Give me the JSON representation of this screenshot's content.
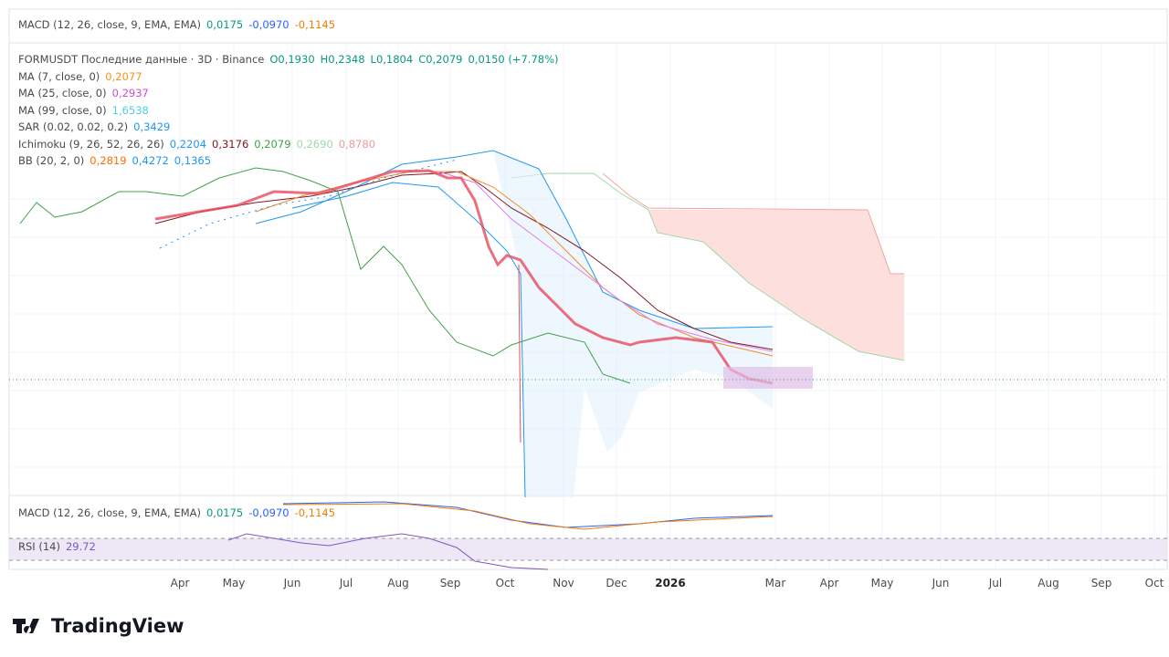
{
  "macd_top": {
    "label": "MACD (12, 26, close, 9, EMA, EMA)",
    "values": [
      {
        "text": "0,0175",
        "color": "#089981"
      },
      {
        "text": "-0,0970",
        "color": "#2962ff"
      },
      {
        "text": "-0,1145",
        "color": "#f57c00"
      }
    ]
  },
  "legend": [
    {
      "label": "FORMUSDT Последние данные · 3D · Binance",
      "values": [
        {
          "text": "O0,1930",
          "color": "#089981"
        },
        {
          "text": "H0,2348",
          "color": "#089981"
        },
        {
          "text": "L0,1804",
          "color": "#089981"
        },
        {
          "text": "C0,2079",
          "color": "#089981"
        },
        {
          "text": "0,0150 (+7.78%)",
          "color": "#089981"
        }
      ]
    },
    {
      "label": "MA (7, close, 0)",
      "values": [
        {
          "text": "0,2077",
          "color": "#f7931a"
        }
      ]
    },
    {
      "label": "MA (25, close, 0)",
      "values": [
        {
          "text": "0,2937",
          "color": "#d24bd8"
        }
      ]
    },
    {
      "label": "MA (99, close, 0)",
      "values": [
        {
          "text": "1,6538",
          "color": "#4dd0e1"
        }
      ]
    },
    {
      "label": "SAR (0.02, 0.02, 0.2)",
      "values": [
        {
          "text": "0,3429",
          "color": "#2196f3"
        }
      ]
    },
    {
      "label": "Ichimoku (9, 26, 52, 26, 26)",
      "values": [
        {
          "text": "0,2204",
          "color": "#2196f3"
        },
        {
          "text": "0,3176",
          "color": "#801922"
        },
        {
          "text": "0,2079",
          "color": "#43a047"
        },
        {
          "text": "0,2690",
          "color": "#a5d6a7"
        },
        {
          "text": "0,8780",
          "color": "#ef9a9a"
        }
      ]
    },
    {
      "label": "BB (20, 2, 0)",
      "values": [
        {
          "text": "0,2819",
          "color": "#ff6d00"
        },
        {
          "text": "0,4272",
          "color": "#2196f3"
        },
        {
          "text": "0,1365",
          "color": "#2196f3"
        }
      ]
    }
  ],
  "macd_pane": {
    "label": "MACD (12, 26, close, 9, EMA, EMA)",
    "values": [
      {
        "text": "0,0175",
        "color": "#089981"
      },
      {
        "text": "-0,0970",
        "color": "#2962ff"
      },
      {
        "text": "-0,1145",
        "color": "#f57c00"
      }
    ]
  },
  "rsi_pane": {
    "label": "RSI (14)",
    "values": [
      {
        "text": "29.72",
        "color": "#7e57c2"
      }
    ]
  },
  "time_axis": [
    "Apr",
    "May",
    "Jun",
    "Jul",
    "Aug",
    "Sep",
    "Oct",
    "Nov",
    "Dec",
    "2026",
    "Mar",
    "Apr",
    "May",
    "Jun",
    "Jul",
    "Aug",
    "Sep",
    "Oct"
  ],
  "brand": "TradingView"
}
